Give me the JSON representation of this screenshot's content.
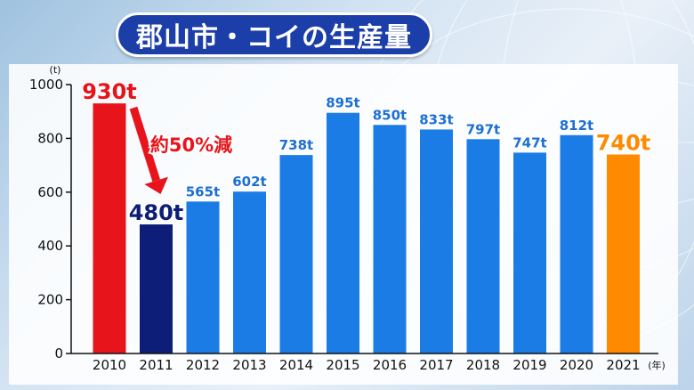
{
  "title": "郡山市・コイの生産量",
  "chart_data": {
    "type": "bar",
    "title": "郡山市・コイの生産量",
    "y_unit": "(t)",
    "x_unit": "(年)",
    "categories": [
      "2010",
      "2011",
      "2012",
      "2013",
      "2014",
      "2015",
      "2016",
      "2017",
      "2018",
      "2019",
      "2020",
      "2021"
    ],
    "values": [
      930,
      480,
      565,
      602,
      738,
      895,
      850,
      833,
      797,
      747,
      812,
      740
    ],
    "data_labels": [
      "930t",
      "480t",
      "565t",
      "602t",
      "738t",
      "895t",
      "850t",
      "833t",
      "797t",
      "747t",
      "812t",
      "740t"
    ],
    "bar_colors": [
      "#e8141b",
      "#0d1e78",
      "#1b7ce6",
      "#1b7ce6",
      "#1b7ce6",
      "#1b7ce6",
      "#1b7ce6",
      "#1b7ce6",
      "#1b7ce6",
      "#1b7ce6",
      "#1b7ce6",
      "#ff8a00"
    ],
    "label_colors": [
      "#e8141b",
      "#0d1e78",
      "#1b6fd6",
      "#1b6fd6",
      "#1b6fd6",
      "#1b6fd6",
      "#1b6fd6",
      "#1b6fd6",
      "#1b6fd6",
      "#1b6fd6",
      "#1b6fd6",
      "#ff8a00"
    ],
    "ylim": [
      0,
      1000
    ],
    "yticks": [
      "0",
      "200",
      "400",
      "600",
      "800",
      "1000"
    ],
    "grid": false,
    "annotation": {
      "text": "約50%減",
      "color": "#e8141b",
      "from_index": 0,
      "to_index": 1
    }
  }
}
